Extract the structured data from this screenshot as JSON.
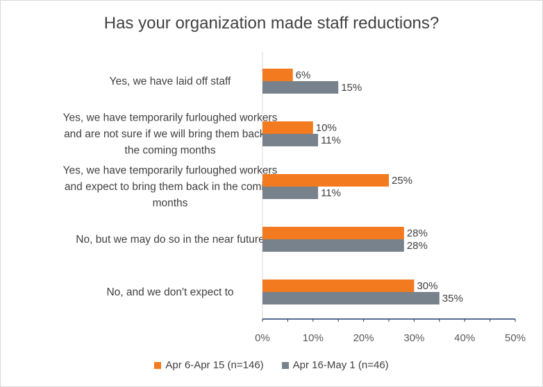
{
  "chart_data": {
    "type": "bar",
    "orientation": "horizontal",
    "title": "Has your organization made staff reductions?",
    "categories": [
      "Yes, we have laid off staff",
      "Yes, we have temporarily furloughed workers and are not sure if we will bring them back in the coming months",
      "Yes, we have temporarily furloughed workers and expect to bring them back in the coming months",
      "No, but we may do so in the near future",
      "No, and we don't expect to"
    ],
    "category_lines": [
      [
        "Yes, we have laid off staff"
      ],
      [
        "Yes, we have temporarily furloughed workers",
        "and are not sure if we will bring them back in",
        "the coming months"
      ],
      [
        "Yes, we have temporarily furloughed workers",
        "and expect to bring them back in the coming",
        "months"
      ],
      [
        "No, but we may do so in the near future"
      ],
      [
        "No, and we don't expect to"
      ]
    ],
    "series": [
      {
        "name": "Apr 6-Apr 15 (n=146)",
        "color": "#f47a20",
        "values": [
          6,
          10,
          25,
          28,
          30
        ],
        "labels": [
          "6%",
          "10%",
          "25%",
          "28%",
          "30%"
        ]
      },
      {
        "name": "Apr 16-May 1 (n=46)",
        "color": "#78828c",
        "values": [
          15,
          11,
          11,
          28,
          35
        ],
        "labels": [
          "15%",
          "11%",
          "11%",
          "28%",
          "35%"
        ]
      }
    ],
    "xlim": [
      0,
      50
    ],
    "xticks": [
      "0%",
      "10%",
      "20%",
      "30%",
      "40%",
      "50%"
    ],
    "xtick_values": [
      0,
      10,
      20,
      30,
      40,
      50
    ],
    "grid": false,
    "legend_position": "bottom"
  }
}
